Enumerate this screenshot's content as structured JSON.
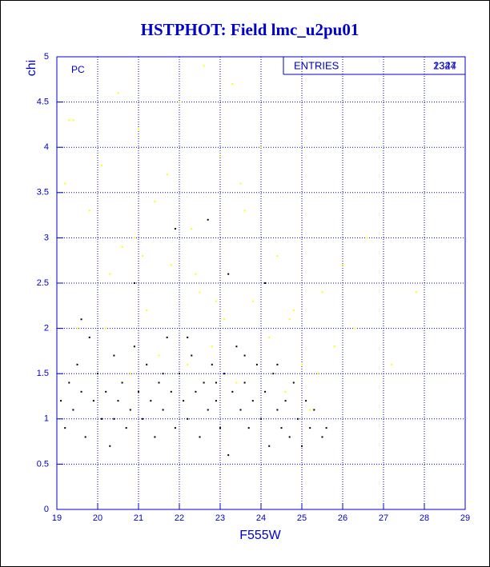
{
  "chart_data": {
    "type": "scatter",
    "title": "HSTPHOT: Field lmc_u2pu01",
    "x_label": "F555W",
    "y_label": "chi",
    "annotation": "PC",
    "stats_box": {
      "label": "ENTRIES",
      "entries": [
        "2344",
        "1327"
      ]
    },
    "xlim": [
      19,
      29
    ],
    "ylim": [
      0,
      5
    ],
    "xticks": [
      19,
      20,
      21,
      22,
      23,
      24,
      25,
      26,
      27,
      28,
      29
    ],
    "yticks": [
      0,
      0.5,
      1,
      1.5,
      2,
      2.5,
      3,
      3.5,
      4,
      4.5,
      5
    ],
    "grid": true,
    "axis_color": "#0000cc",
    "series": [
      {
        "color": "#ffff00",
        "x": [
          19.2,
          19.4,
          19.5,
          19.8,
          20.1,
          20.3,
          20.5,
          20.6,
          20.8,
          21.0,
          21.2,
          21.4,
          21.5,
          21.7,
          21.8,
          22.0,
          22.2,
          22.3,
          22.5,
          22.6,
          22.8,
          23.0,
          23.1,
          23.3,
          23.4,
          23.6,
          23.8,
          24.0,
          24.2,
          24.4,
          24.6,
          24.8,
          25.0,
          25.2,
          25.5,
          25.8,
          26.0,
          26.3,
          26.6,
          27.2,
          27.8,
          19.3,
          20.2,
          21.1,
          22.4,
          23.5,
          24.7,
          25.4,
          20.9,
          22.9
        ],
        "values": [
          3.6,
          4.3,
          2.0,
          3.3,
          3.8,
          2.6,
          4.6,
          2.9,
          1.5,
          4.2,
          2.2,
          3.4,
          1.7,
          3.7,
          2.7,
          4.5,
          1.6,
          3.1,
          2.4,
          4.9,
          1.8,
          3.9,
          2.1,
          4.7,
          1.4,
          3.3,
          2.3,
          4.0,
          1.9,
          2.8,
          1.3,
          2.2,
          1.6,
          1.1,
          2.4,
          1.8,
          2.7,
          2.0,
          3.0,
          1.6,
          2.4,
          4.3,
          2.0,
          2.8,
          2.6,
          3.6,
          2.1,
          1.5,
          3.0,
          2.3
        ]
      },
      {
        "color": "#000000",
        "x": [
          19.1,
          19.2,
          19.3,
          19.4,
          19.5,
          19.6,
          19.7,
          19.8,
          19.9,
          20.0,
          20.1,
          20.2,
          20.3,
          20.4,
          20.5,
          20.6,
          20.7,
          20.8,
          20.9,
          21.0,
          21.1,
          21.2,
          21.3,
          21.4,
          21.5,
          21.6,
          21.7,
          21.8,
          21.9,
          22.0,
          22.1,
          22.2,
          22.3,
          22.4,
          22.5,
          22.6,
          22.7,
          22.8,
          22.9,
          23.0,
          23.1,
          23.2,
          23.3,
          23.4,
          23.5,
          23.6,
          23.7,
          23.8,
          23.9,
          24.0,
          24.1,
          24.2,
          24.3,
          24.4,
          24.5,
          24.6,
          24.7,
          24.8,
          24.9,
          25.0,
          25.1,
          25.2,
          25.3,
          25.5,
          25.6,
          22.7,
          23.2,
          21.9,
          24.1,
          19.6,
          20.9,
          22.2,
          23.6,
          20.4,
          21.6,
          22.9,
          24.4
        ],
        "values": [
          1.2,
          0.9,
          1.4,
          1.1,
          1.6,
          1.3,
          0.8,
          1.9,
          1.2,
          1.5,
          1.0,
          1.3,
          0.7,
          1.7,
          1.2,
          1.4,
          0.9,
          1.1,
          1.8,
          1.3,
          1.0,
          1.6,
          1.2,
          0.8,
          1.4,
          1.1,
          1.9,
          1.3,
          0.9,
          1.5,
          1.2,
          1.0,
          1.7,
          1.3,
          0.8,
          1.4,
          1.1,
          1.6,
          1.2,
          0.9,
          1.5,
          0.6,
          1.3,
          1.8,
          1.1,
          1.4,
          0.9,
          1.2,
          1.6,
          1.0,
          1.3,
          0.7,
          1.5,
          1.1,
          0.9,
          1.2,
          0.8,
          1.4,
          1.0,
          0.7,
          1.2,
          0.9,
          1.1,
          0.8,
          0.9,
          3.2,
          2.6,
          3.1,
          2.5,
          2.1,
          2.5,
          1.9,
          1.7,
          1.0,
          1.5,
          1.4,
          1.6
        ]
      }
    ]
  }
}
